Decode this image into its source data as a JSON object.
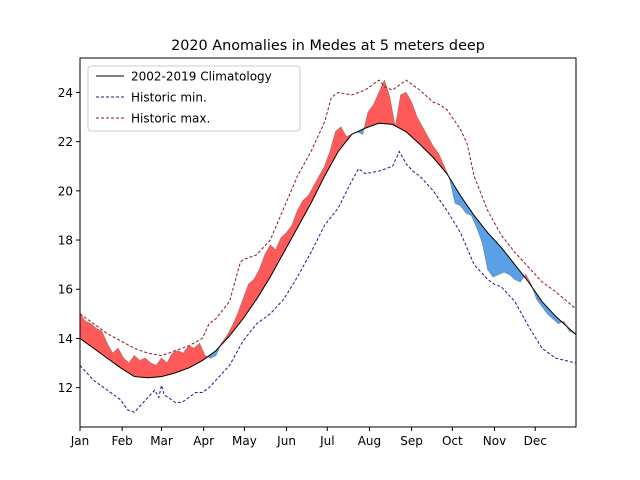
{
  "chart_data": {
    "type": "line",
    "title": "2020 Anomalies in Medes at 5 meters deep",
    "xlabel": "",
    "ylabel": "",
    "x_range_day_of_year": [
      0,
      365
    ],
    "ylim": [
      10.4,
      25.4
    ],
    "x_ticks": [
      {
        "label": "Jan",
        "day": 0
      },
      {
        "label": "Feb",
        "day": 31
      },
      {
        "label": "Mar",
        "day": 60
      },
      {
        "label": "Apr",
        "day": 91
      },
      {
        "label": "May",
        "day": 121
      },
      {
        "label": "Jun",
        "day": 152
      },
      {
        "label": "Jul",
        "day": 182
      },
      {
        "label": "Aug",
        "day": 213
      },
      {
        "label": "Sep",
        "day": 244
      },
      {
        "label": "Oct",
        "day": 274
      },
      {
        "label": "Nov",
        "day": 305
      },
      {
        "label": "Dec",
        "day": 335
      }
    ],
    "y_ticks": [
      12,
      14,
      16,
      18,
      20,
      22,
      24
    ],
    "grid": false,
    "legend_position": "top-left",
    "anomaly_colors": {
      "positive": "#ff5a5a",
      "negative": "#5aa0e6"
    },
    "series": [
      {
        "name": "2002-2019 Climatology",
        "color": "#000000",
        "style": "solid",
        "x": [
          0,
          10,
          20,
          30,
          40,
          50,
          60,
          70,
          80,
          90,
          100,
          110,
          120,
          130,
          140,
          150,
          160,
          170,
          180,
          190,
          200,
          210,
          220,
          230,
          240,
          250,
          260,
          270,
          280,
          290,
          300,
          310,
          320,
          330,
          340,
          350,
          365
        ],
        "y": [
          14.0,
          13.6,
          13.2,
          12.8,
          12.45,
          12.4,
          12.45,
          12.6,
          12.8,
          13.1,
          13.5,
          14.1,
          14.8,
          15.6,
          16.5,
          17.5,
          18.5,
          19.5,
          20.6,
          21.6,
          22.3,
          22.55,
          22.75,
          22.7,
          22.4,
          21.9,
          21.35,
          20.7,
          19.8,
          19.0,
          18.3,
          17.7,
          17.0,
          16.3,
          15.5,
          14.9,
          14.15
        ]
      },
      {
        "name": "Historic min.",
        "color": "#1a1a8c",
        "style": "dashed",
        "x": [
          0,
          10,
          20,
          30,
          35,
          40,
          45,
          50,
          55,
          58,
          60,
          62,
          65,
          70,
          75,
          80,
          85,
          90,
          95,
          100,
          110,
          120,
          130,
          140,
          150,
          160,
          170,
          180,
          190,
          200,
          205,
          210,
          220,
          230,
          235,
          240,
          245,
          250,
          260,
          270,
          280,
          290,
          300,
          305,
          310,
          320,
          330,
          340,
          350,
          365
        ],
        "y": [
          12.9,
          12.3,
          11.9,
          11.5,
          11.1,
          11.0,
          11.3,
          11.6,
          11.9,
          11.6,
          12.1,
          11.7,
          11.6,
          11.4,
          11.4,
          11.6,
          11.8,
          11.8,
          12.0,
          12.3,
          12.9,
          13.9,
          14.6,
          15.0,
          15.6,
          16.5,
          17.5,
          18.6,
          19.3,
          20.4,
          20.9,
          20.7,
          20.8,
          21.0,
          21.6,
          21.1,
          20.8,
          20.6,
          20.0,
          19.2,
          18.3,
          17.0,
          16.4,
          16.2,
          16.1,
          15.5,
          14.5,
          13.6,
          13.2,
          13.0
        ]
      },
      {
        "name": "Historic max.",
        "color": "#8b1a1a",
        "style": "dashed",
        "x": [
          0,
          10,
          20,
          30,
          40,
          50,
          60,
          70,
          80,
          90,
          95,
          100,
          110,
          115,
          118,
          120,
          125,
          130,
          140,
          150,
          160,
          170,
          180,
          185,
          190,
          200,
          210,
          220,
          225,
          230,
          235,
          240,
          250,
          260,
          265,
          270,
          280,
          285,
          290,
          300,
          310,
          320,
          330,
          340,
          350,
          365
        ],
        "y": [
          15.0,
          14.6,
          14.2,
          13.9,
          13.6,
          13.4,
          13.3,
          13.5,
          13.7,
          14.0,
          14.6,
          14.8,
          15.5,
          16.5,
          17.1,
          17.2,
          17.3,
          17.4,
          18.0,
          19.3,
          20.6,
          21.6,
          22.8,
          23.8,
          24.0,
          23.9,
          24.1,
          24.5,
          24.2,
          24.1,
          24.3,
          24.5,
          24.1,
          23.6,
          23.5,
          23.3,
          22.5,
          21.9,
          20.6,
          19.2,
          18.2,
          17.5,
          16.9,
          16.3,
          15.9,
          15.2
        ]
      },
      {
        "name": "2020",
        "x": [
          0,
          4,
          8,
          12,
          16,
          20,
          24,
          28,
          32,
          36,
          40,
          44,
          48,
          52,
          56,
          60,
          64,
          68,
          72,
          76,
          80,
          84,
          88,
          92,
          96,
          100,
          104,
          108,
          112,
          116,
          120,
          124,
          128,
          132,
          136,
          140,
          144,
          148,
          152,
          156,
          160,
          164,
          168,
          172,
          176,
          180,
          184,
          188,
          192,
          196,
          200,
          204,
          208,
          212,
          216,
          220,
          224,
          228,
          232,
          236,
          240,
          244,
          248,
          252,
          256,
          260,
          264,
          268,
          272,
          276,
          280,
          284,
          288,
          292,
          296,
          300,
          304,
          308,
          312,
          316,
          320,
          324,
          328,
          332,
          336,
          340,
          344,
          348,
          352,
          356,
          360,
          365
        ],
        "y": [
          15.0,
          14.7,
          14.6,
          14.4,
          14.3,
          13.8,
          13.4,
          13.6,
          13.2,
          13.0,
          13.3,
          13.1,
          13.2,
          13.0,
          12.9,
          13.2,
          13.0,
          13.4,
          13.5,
          13.4,
          13.7,
          13.6,
          13.8,
          13.3,
          13.2,
          13.3,
          13.8,
          14.1,
          14.5,
          15.0,
          15.6,
          16.2,
          16.4,
          16.8,
          17.4,
          17.8,
          17.6,
          18.1,
          18.3,
          18.6,
          19.2,
          19.6,
          19.8,
          20.2,
          20.6,
          21.0,
          21.6,
          22.4,
          22.6,
          22.2,
          22.3,
          22.4,
          22.3,
          23.2,
          23.5,
          24.0,
          24.5,
          23.8,
          22.6,
          23.9,
          24.0,
          23.6,
          23.0,
          22.6,
          22.2,
          21.8,
          21.5,
          21.0,
          20.5,
          19.5,
          19.4,
          19.1,
          19.0,
          18.5,
          17.9,
          16.8,
          16.5,
          16.6,
          16.7,
          16.6,
          16.4,
          16.3,
          16.6,
          16.2,
          15.6,
          15.3,
          15.0,
          14.8,
          14.6,
          14.7,
          14.3,
          14.2
        ]
      }
    ]
  }
}
